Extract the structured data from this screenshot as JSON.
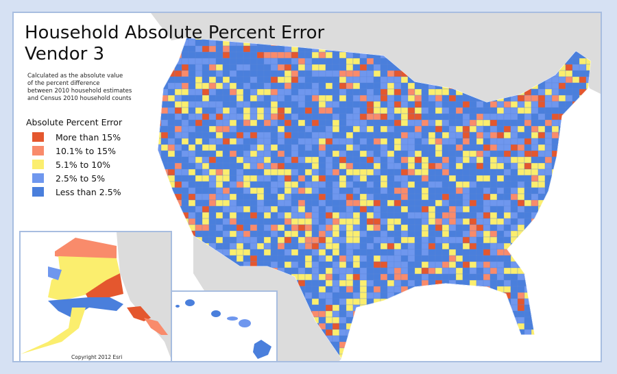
{
  "title_line1": "Household Absolute Percent Error",
  "title_line2": "Vendor 3",
  "description": "Calculated as the absolute value\nof the percent difference\nbetween 2010 household estimates\nand Census 2010 household counts",
  "legend": {
    "title": "Absolute Percent Error",
    "items": [
      {
        "label": "More than 15%",
        "color": "#e4572e"
      },
      {
        "label": "10.1% to 15%",
        "color": "#f98b6b"
      },
      {
        "label": "5.1% to 10%",
        "color": "#fbee6e"
      },
      {
        "label": "2.5% to 5%",
        "color": "#6f97ee"
      },
      {
        "label": "Less than 2.5%",
        "color": "#4a7fdc"
      }
    ]
  },
  "copyright": "Copyright 2012 Esri",
  "colors": {
    "land_background": "#dcdcdc",
    "frame_border": "#a7bde0",
    "page_background": "#d6e1f3"
  }
}
